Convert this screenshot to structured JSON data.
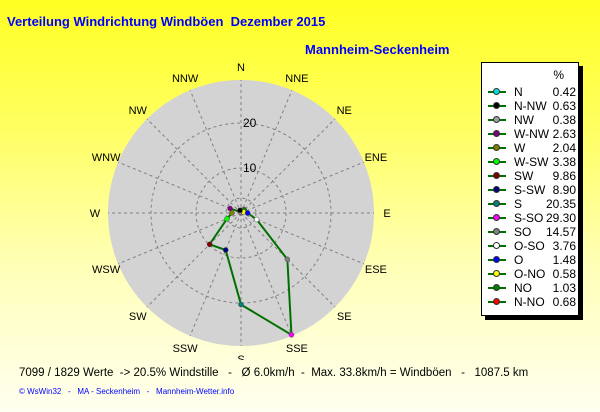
{
  "header": {
    "title": "Verteilung Windrichtung Windböen  Dezember 2015",
    "station": "Mannheim-Seckenheim"
  },
  "chart_data": {
    "type": "radar",
    "title": "Verteilung Windrichtung Windböen  Dezember 2015",
    "directions": [
      "N",
      "NNE",
      "NE",
      "ENE",
      "E",
      "ESE",
      "SE",
      "SSE",
      "S",
      "SSW",
      "SW",
      "WSW",
      "W",
      "WNW",
      "NW",
      "NNW"
    ],
    "ring_ticks": [
      10,
      20
    ],
    "rmax": 30,
    "series": [
      {
        "name": "Windböen",
        "color": "#007000",
        "values": [
          0.42,
          0.68,
          1.03,
          0.58,
          1.48,
          3.76,
          14.57,
          29.3,
          20.35,
          8.9,
          9.86,
          3.38,
          2.04,
          2.63,
          0.38,
          0.63
        ]
      }
    ]
  },
  "legend": {
    "unit": "%",
    "items": [
      {
        "name": "N",
        "value": "0.42",
        "color": "#00e0e0"
      },
      {
        "name": "N-NW",
        "value": "0.63",
        "color": "#000000"
      },
      {
        "name": "NW",
        "value": "0.38",
        "color": "#a0a0a0"
      },
      {
        "name": "W-NW",
        "value": "2.63",
        "color": "#800080"
      },
      {
        "name": "W",
        "value": "2.04",
        "color": "#808000"
      },
      {
        "name": "W-SW",
        "value": "3.38",
        "color": "#00ff00"
      },
      {
        "name": "SW",
        "value": "9.86",
        "color": "#800000"
      },
      {
        "name": "S-SW",
        "value": "8.90",
        "color": "#000080"
      },
      {
        "name": "S",
        "value": "20.35",
        "color": "#008080"
      },
      {
        "name": "S-SO",
        "value": "29.30",
        "color": "#ff00ff"
      },
      {
        "name": "SO",
        "value": "14.57",
        "color": "#808080"
      },
      {
        "name": "O-SO",
        "value": "3.76",
        "color": "#ffffff"
      },
      {
        "name": "O",
        "value": "1.48",
        "color": "#0000ff"
      },
      {
        "name": "O-NO",
        "value": "0.58",
        "color": "#ffff00"
      },
      {
        "name": "NO",
        "value": "1.03",
        "color": "#008000"
      },
      {
        "name": "N-NO",
        "value": "0.68",
        "color": "#ff0000"
      }
    ]
  },
  "footer": {
    "stats": "7099 / 1829 Werte  -> 20.5% Windstille   -   Ø 6.0km/h  -  Max. 33.8km/h = Windböen   -   1087.5 km",
    "credit": "© WsWin32   -   MA - Seckenheim   -   Mannheim-Wetter.info"
  }
}
